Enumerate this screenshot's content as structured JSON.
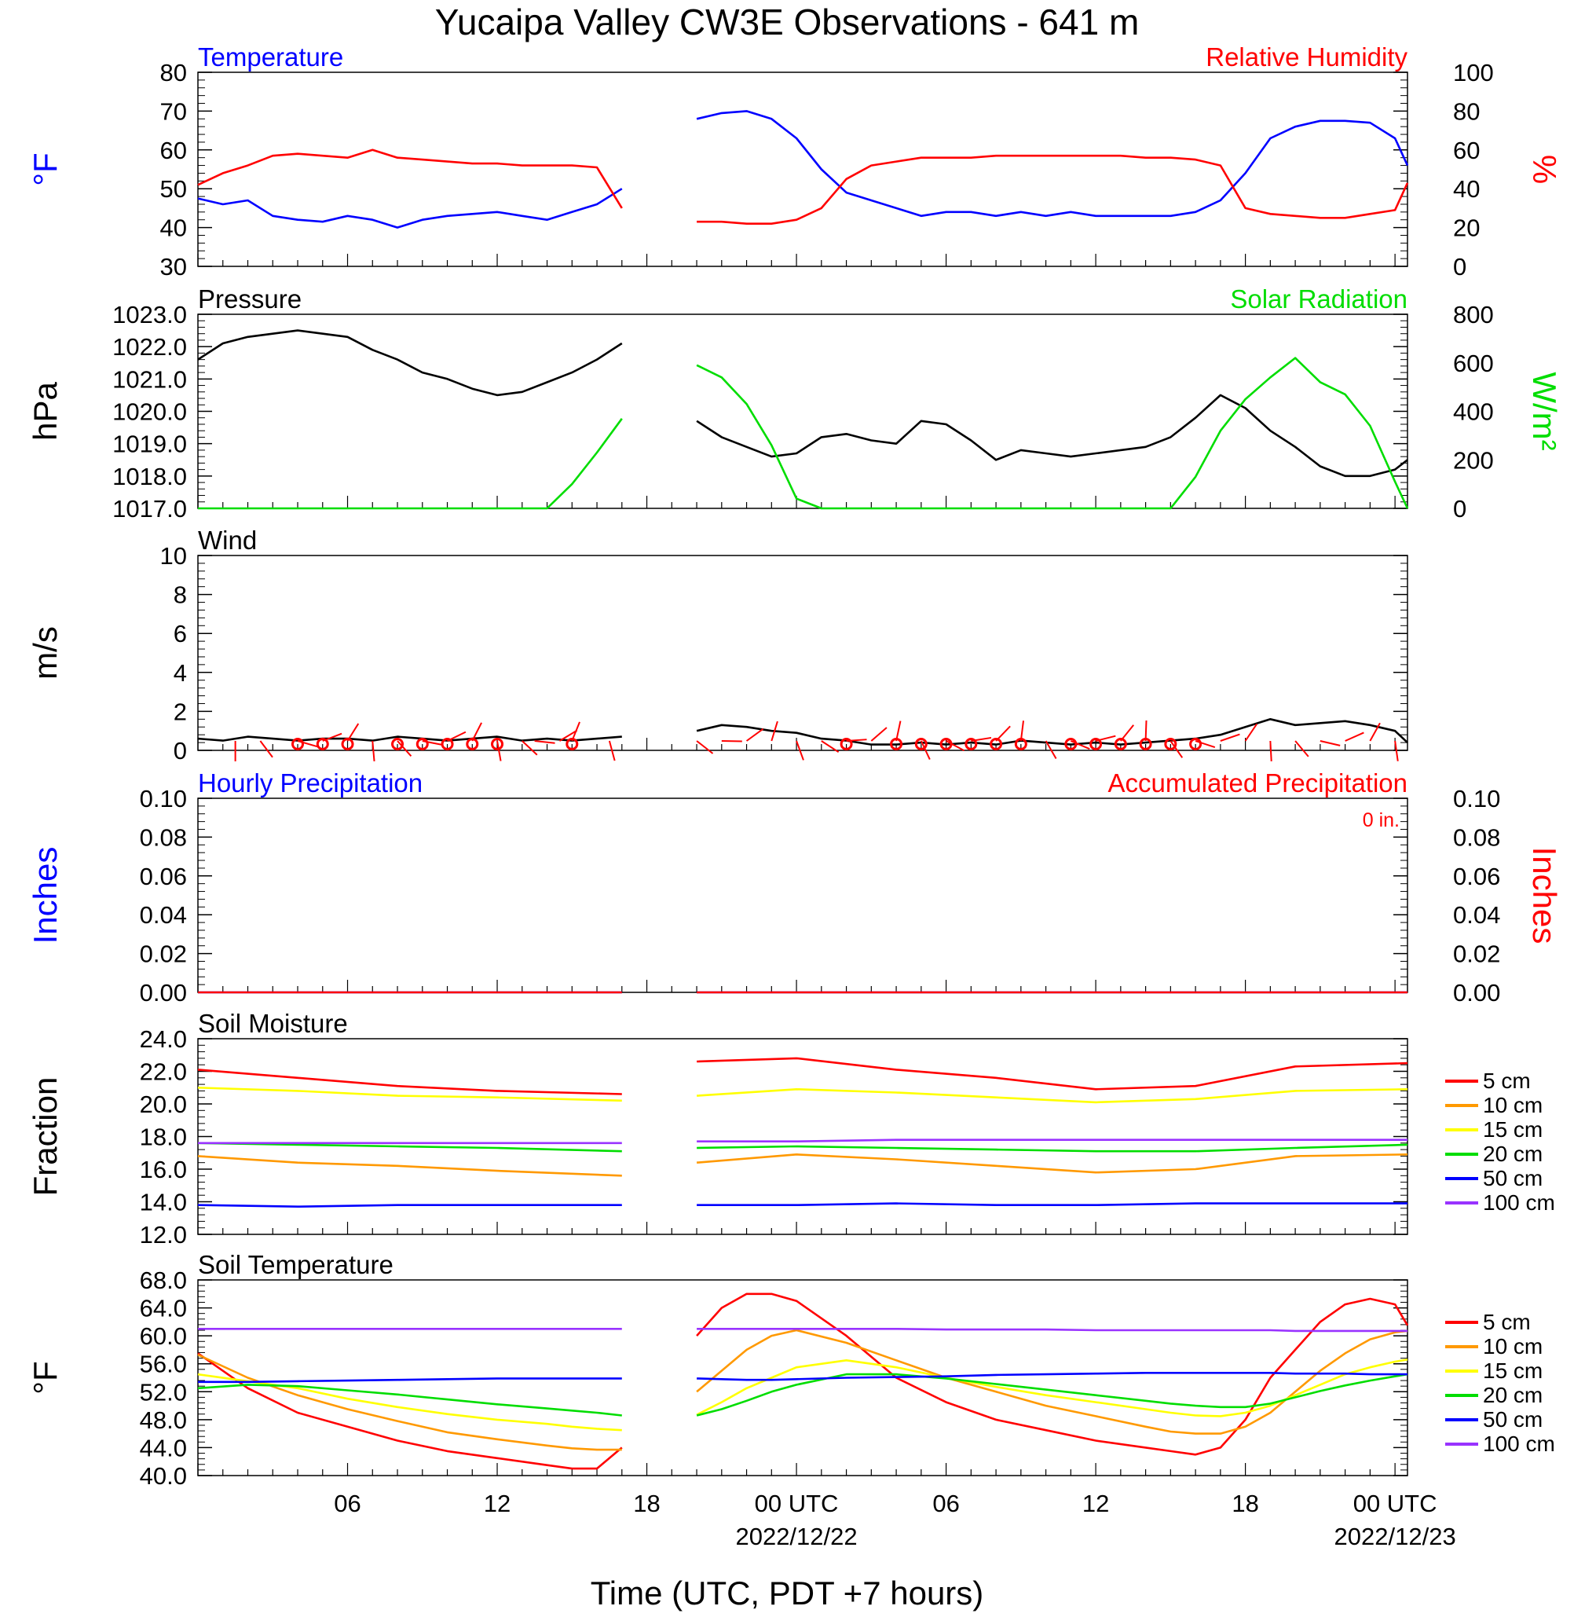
{
  "title": "Yucaipa Valley CW3E Observations - 641 m",
  "xaxis": {
    "label": "Time (UTC, PDT +7 hours)",
    "tick_labels": [
      "06",
      "12",
      "18",
      "00 UTC",
      "06",
      "12",
      "18",
      "00 UTC"
    ],
    "date_labels": [
      "2022/12/22",
      "2022/12/23"
    ]
  },
  "colors": {
    "blue": "#0000ff",
    "red": "#ff0000",
    "green": "#00dd00",
    "black": "#000000",
    "orange": "#ff9900",
    "yellow": "#ffff00",
    "purple": "#9933ff"
  },
  "legend_soil": [
    "5 cm",
    "10 cm",
    "15 cm",
    "20 cm",
    "50 cm",
    "100 cm"
  ],
  "chart_data": [
    {
      "type": "line",
      "title_left": "Temperature",
      "title_right": "Relative Humidity",
      "ylabel_left": "°F",
      "ylabel_right": "%",
      "ylim_left": [
        30,
        80
      ],
      "ylim_right": [
        0,
        100
      ],
      "left_ticks": [
        "80",
        "70",
        "60",
        "50",
        "40",
        "30"
      ],
      "right_ticks": [
        "100",
        "80",
        "60",
        "40",
        "20",
        "0"
      ],
      "x_hours": [
        0,
        1,
        2,
        3,
        4,
        5,
        6,
        7,
        8,
        9,
        10,
        11,
        12,
        13,
        14,
        15,
        16,
        17,
        20,
        21,
        22,
        23,
        24,
        25,
        26,
        27,
        28,
        29,
        30,
        31,
        32,
        33,
        34,
        35,
        36,
        37,
        38,
        39,
        40,
        41,
        42,
        43,
        44,
        45,
        46,
        47,
        48,
        48.5
      ],
      "series": [
        {
          "name": "Temperature",
          "axis": "left",
          "color": "blue",
          "values": [
            47.5,
            46,
            47,
            43,
            42,
            41.5,
            43,
            42,
            40,
            42,
            43,
            43.5,
            44,
            43,
            42,
            44,
            46,
            50,
            68,
            69.5,
            70,
            68,
            63,
            55,
            49,
            47,
            45,
            43,
            44,
            44,
            43,
            44,
            43,
            44,
            43,
            43,
            43,
            43,
            44,
            47,
            54,
            63,
            66,
            67.5,
            67.5,
            67,
            63,
            56
          ]
        },
        {
          "name": "Relative Humidity",
          "axis": "right",
          "color": "red",
          "values": [
            42,
            48,
            52,
            57,
            58,
            57,
            56,
            60,
            56,
            55,
            54,
            53,
            53,
            52,
            52,
            52,
            51,
            30,
            23,
            23,
            22,
            22,
            24,
            30,
            45,
            52,
            54,
            56,
            56,
            56,
            57,
            57,
            57,
            57,
            57,
            57,
            56,
            56,
            55,
            52,
            30,
            27,
            26,
            25,
            25,
            27,
            29,
            43
          ]
        }
      ]
    },
    {
      "type": "line",
      "title_left": "Pressure",
      "title_right": "Solar Radiation",
      "ylabel_left": "hPa",
      "ylabel_right": "W/m²",
      "ylim_left": [
        1017,
        1023
      ],
      "ylim_right": [
        0,
        800
      ],
      "left_ticks": [
        "1023.0",
        "1022.0",
        "1021.0",
        "1020.0",
        "1019.0",
        "1018.0",
        "1017.0"
      ],
      "right_ticks": [
        "800",
        "600",
        "400",
        "200",
        "0"
      ],
      "x_hours": [
        0,
        1,
        2,
        3,
        4,
        5,
        6,
        7,
        8,
        9,
        10,
        11,
        12,
        13,
        14,
        15,
        16,
        17,
        20,
        21,
        22,
        23,
        24,
        25,
        26,
        27,
        28,
        29,
        30,
        31,
        32,
        33,
        34,
        35,
        36,
        37,
        38,
        39,
        40,
        41,
        42,
        43,
        44,
        45,
        46,
        47,
        48,
        48.5
      ],
      "series": [
        {
          "name": "Pressure",
          "axis": "left",
          "color": "black",
          "values": [
            1021.6,
            1022.1,
            1022.3,
            1022.4,
            1022.5,
            1022.4,
            1022.3,
            1021.9,
            1021.6,
            1021.2,
            1021.0,
            1020.7,
            1020.5,
            1020.6,
            1020.9,
            1021.2,
            1021.6,
            1022.1,
            1019.7,
            1019.2,
            1018.9,
            1018.6,
            1018.7,
            1019.2,
            1019.3,
            1019.1,
            1019.0,
            1019.7,
            1019.6,
            1019.1,
            1018.5,
            1018.8,
            1018.7,
            1018.6,
            1018.7,
            1018.8,
            1018.9,
            1019.2,
            1019.8,
            1020.5,
            1020.1,
            1019.4,
            1018.9,
            1018.3,
            1018.0,
            1018.0,
            1018.2,
            1018.5
          ]
        },
        {
          "name": "Solar Radiation",
          "axis": "right",
          "color": "green",
          "values": [
            0,
            0,
            0,
            0,
            0,
            0,
            0,
            0,
            0,
            0,
            0,
            0,
            0,
            0,
            0,
            100,
            230,
            370,
            590,
            540,
            430,
            260,
            40,
            0,
            0,
            0,
            0,
            0,
            0,
            0,
            0,
            0,
            0,
            0,
            0,
            0,
            0,
            0,
            130,
            320,
            450,
            540,
            620,
            520,
            470,
            340,
            110,
            0
          ]
        }
      ]
    },
    {
      "type": "line",
      "title_left": "Wind",
      "ylabel_left": "m/s",
      "ylim_left": [
        0,
        10
      ],
      "left_ticks": [
        "10",
        "8",
        "6",
        "4",
        "2",
        "0"
      ],
      "x_hours": [
        0,
        1,
        2,
        3,
        4,
        5,
        6,
        7,
        8,
        9,
        10,
        11,
        12,
        13,
        14,
        15,
        16,
        17,
        20,
        21,
        22,
        23,
        24,
        25,
        26,
        27,
        28,
        29,
        30,
        31,
        32,
        33,
        34,
        35,
        36,
        37,
        38,
        39,
        40,
        41,
        42,
        43,
        44,
        45,
        46,
        47,
        48,
        48.5
      ],
      "series": [
        {
          "name": "Wind",
          "axis": "left",
          "color": "black",
          "values": [
            0.6,
            0.5,
            0.7,
            0.6,
            0.5,
            0.6,
            0.6,
            0.5,
            0.7,
            0.6,
            0.5,
            0.6,
            0.7,
            0.5,
            0.6,
            0.5,
            0.6,
            0.7,
            1.0,
            1.3,
            1.2,
            1.0,
            0.9,
            0.6,
            0.5,
            0.3,
            0.3,
            0.4,
            0.3,
            0.4,
            0.3,
            0.5,
            0.4,
            0.3,
            0.4,
            0.3,
            0.4,
            0.5,
            0.6,
            0.8,
            1.2,
            1.6,
            1.3,
            1.4,
            1.5,
            1.3,
            1.0,
            0.4
          ]
        }
      ],
      "barb_hours": [
        1.5,
        2.5,
        4,
        5,
        6,
        7,
        8,
        9,
        10,
        11,
        12,
        13,
        13.5,
        14.5,
        15,
        16.5,
        20,
        21,
        22,
        23,
        24,
        25,
        26,
        27,
        28,
        29,
        30,
        31,
        32,
        33,
        34,
        35,
        36,
        37,
        38,
        39,
        40,
        41,
        42,
        43,
        44,
        45,
        46,
        47,
        48
      ],
      "calm_hours": [
        4,
        5,
        6,
        8,
        9,
        10,
        11,
        12,
        15,
        26,
        28,
        29,
        30,
        31,
        32,
        33,
        35,
        36,
        37,
        38,
        39,
        40
      ]
    },
    {
      "type": "line",
      "title_left": "Hourly Precipitation",
      "title_right": "Accumulated Precipitation",
      "annotation": "0 in.",
      "ylabel_left": "Inches",
      "ylabel_right": "Inches",
      "ylim_left": [
        0,
        0.1
      ],
      "ylim_right": [
        0,
        0.1
      ],
      "left_ticks": [
        "0.10",
        "0.08",
        "0.06",
        "0.04",
        "0.02",
        "0.00"
      ],
      "right_ticks": [
        "0.10",
        "0.08",
        "0.06",
        "0.04",
        "0.02",
        "0.00"
      ],
      "x_hours": [
        0,
        17,
        20,
        48.5
      ],
      "series": [
        {
          "name": "Hourly Precipitation",
          "axis": "left",
          "color": "blue",
          "values": [
            0,
            0,
            0,
            0
          ]
        },
        {
          "name": "Accumulated Precipitation",
          "axis": "right",
          "color": "red",
          "values": [
            0,
            0,
            0,
            0
          ]
        }
      ]
    },
    {
      "type": "line",
      "title_left": "Soil Moisture",
      "ylabel_left": "Fraction",
      "ylim_left": [
        12,
        24
      ],
      "left_ticks": [
        "24.0",
        "22.0",
        "20.0",
        "18.0",
        "16.0",
        "14.0",
        "12.0"
      ],
      "x_hours": [
        0,
        4,
        8,
        12,
        17,
        20,
        24,
        28,
        32,
        36,
        40,
        44,
        48.5
      ],
      "series": [
        {
          "name": "5 cm",
          "color": "red",
          "values": [
            22.1,
            21.6,
            21.1,
            20.8,
            20.6,
            22.6,
            22.8,
            22.1,
            21.6,
            20.9,
            21.1,
            22.3,
            22.5
          ]
        },
        {
          "name": "10 cm",
          "color": "orange",
          "values": [
            16.8,
            16.4,
            16.2,
            15.9,
            15.6,
            16.4,
            16.9,
            16.6,
            16.2,
            15.8,
            16.0,
            16.8,
            16.9
          ]
        },
        {
          "name": "15 cm",
          "color": "yellow",
          "values": [
            21.0,
            20.8,
            20.5,
            20.4,
            20.2,
            20.5,
            20.9,
            20.7,
            20.4,
            20.1,
            20.3,
            20.8,
            20.9
          ]
        },
        {
          "name": "20 cm",
          "color": "green",
          "values": [
            17.6,
            17.5,
            17.4,
            17.3,
            17.1,
            17.3,
            17.4,
            17.3,
            17.2,
            17.1,
            17.1,
            17.3,
            17.5
          ]
        },
        {
          "name": "50 cm",
          "color": "blue",
          "values": [
            13.8,
            13.7,
            13.8,
            13.8,
            13.8,
            13.8,
            13.8,
            13.9,
            13.8,
            13.8,
            13.9,
            13.9,
            13.9
          ]
        },
        {
          "name": "100 cm",
          "color": "purple",
          "values": [
            17.6,
            17.6,
            17.6,
            17.6,
            17.6,
            17.7,
            17.7,
            17.8,
            17.8,
            17.8,
            17.8,
            17.8,
            17.8
          ]
        }
      ]
    },
    {
      "type": "line",
      "title_left": "Soil Temperature",
      "ylabel_left": "°F",
      "ylim_left": [
        40,
        68
      ],
      "left_ticks": [
        "68.0",
        "64.0",
        "60.0",
        "56.0",
        "52.0",
        "48.0",
        "44.0",
        "40.0"
      ],
      "x_hours": [
        0,
        2,
        4,
        6,
        8,
        10,
        12,
        14,
        15,
        16,
        17,
        20,
        21,
        22,
        23,
        24,
        26,
        28,
        30,
        32,
        34,
        36,
        38,
        39,
        40,
        41,
        42,
        43,
        44,
        45,
        46,
        47,
        48,
        48.5
      ],
      "series": [
        {
          "name": "5 cm",
          "color": "red",
          "values": [
            57.5,
            52.5,
            49,
            47,
            45,
            43.5,
            42.5,
            41.5,
            41,
            41,
            44,
            60,
            64,
            66,
            66,
            65,
            60,
            54,
            50.5,
            48,
            46.5,
            45,
            44,
            43.5,
            43,
            44,
            48,
            54,
            58,
            62,
            64.5,
            65.3,
            64.5,
            61.5
          ]
        },
        {
          "name": "10 cm",
          "color": "orange",
          "values": [
            57.3,
            54,
            51.5,
            49.5,
            47.8,
            46.2,
            45.2,
            44.3,
            43.9,
            43.7,
            43.7,
            52,
            55,
            58,
            60,
            60.8,
            59,
            56.5,
            54,
            52,
            50,
            48.5,
            47,
            46.3,
            46,
            46,
            47,
            49,
            52,
            55,
            57.5,
            59.5,
            60.5,
            60.7
          ]
        },
        {
          "name": "15 cm",
          "color": "yellow",
          "values": [
            54.5,
            53.5,
            52.5,
            51,
            49.8,
            48.8,
            48,
            47.4,
            47,
            46.7,
            46.5,
            48.7,
            50.5,
            52.5,
            54,
            55.5,
            56.5,
            55.5,
            54,
            52.7,
            51.5,
            50.5,
            49.5,
            49,
            48.6,
            48.5,
            49,
            50,
            51.5,
            53,
            54.5,
            55.5,
            56.3,
            56.6
          ]
        },
        {
          "name": "20 cm",
          "color": "green",
          "values": [
            52.5,
            53,
            52.8,
            52.2,
            51.6,
            50.9,
            50.2,
            49.6,
            49.3,
            49,
            48.6,
            48.6,
            49.5,
            50.7,
            52,
            53,
            54.5,
            54.5,
            53.9,
            53.1,
            52.3,
            51.5,
            50.7,
            50.3,
            50,
            49.8,
            49.8,
            50.3,
            51.2,
            52.1,
            52.9,
            53.6,
            54.2,
            54.5
          ]
        },
        {
          "name": "50 cm",
          "color": "blue",
          "values": [
            53.4,
            53.4,
            53.5,
            53.6,
            53.7,
            53.8,
            53.9,
            53.9,
            53.9,
            53.9,
            53.9,
            53.9,
            53.8,
            53.7,
            53.7,
            53.8,
            54,
            54.1,
            54.2,
            54.4,
            54.5,
            54.6,
            54.7,
            54.7,
            54.7,
            54.7,
            54.7,
            54.7,
            54.6,
            54.6,
            54.6,
            54.5,
            54.5,
            54.5
          ]
        },
        {
          "name": "100 cm",
          "color": "purple",
          "values": [
            61,
            61,
            61,
            61,
            61,
            61,
            61,
            61,
            61,
            61,
            61,
            61,
            61,
            61,
            61,
            61,
            61,
            61,
            60.9,
            60.9,
            60.9,
            60.8,
            60.8,
            60.8,
            60.8,
            60.8,
            60.8,
            60.8,
            60.7,
            60.7,
            60.7,
            60.7,
            60.7,
            60.7
          ]
        }
      ]
    }
  ]
}
